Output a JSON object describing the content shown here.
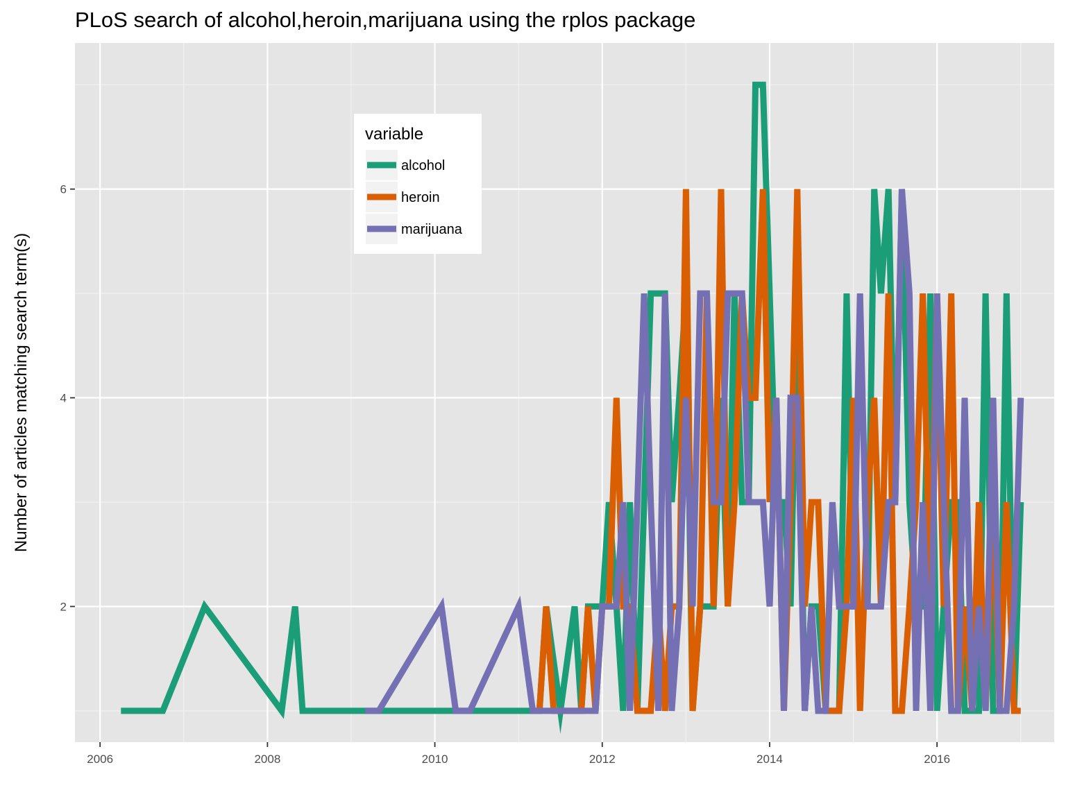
{
  "chart_data": {
    "type": "line",
    "title": "PLoS search of alcohol,heroin,marijuana using the rplos package",
    "xlabel": "",
    "ylabel": "Number of articles matching search term(s)",
    "xlim": [
      2005.7,
      2017.4
    ],
    "ylim": [
      0.7,
      7.4
    ],
    "x_ticks": [
      2006,
      2008,
      2010,
      2012,
      2014,
      2016
    ],
    "x_tick_labels": [
      "2006",
      "2008",
      "2010",
      "2012",
      "2014",
      "2016"
    ],
    "y_ticks": [
      2,
      4,
      6
    ],
    "y_tick_labels": [
      "2",
      "4",
      "6"
    ],
    "grid": true,
    "legend": {
      "title": "variable",
      "placement": "top-left inside"
    },
    "series": [
      {
        "name": "alcohol",
        "color": "#1b9e77",
        "x": [
          2006.25,
          2006.75,
          2007.25,
          2008.17,
          2008.33,
          2008.42,
          2009.25,
          2010.0,
          2011.25,
          2011.33,
          2011.5,
          2011.67,
          2011.75,
          2011.83,
          2011.92,
          2012.0,
          2012.08,
          2012.17,
          2012.25,
          2012.33,
          2012.42,
          2012.5,
          2012.58,
          2012.67,
          2012.75,
          2012.83,
          2012.92,
          2013.0,
          2013.08,
          2013.17,
          2013.25,
          2013.33,
          2013.42,
          2013.5,
          2013.58,
          2013.67,
          2013.75,
          2013.83,
          2013.92,
          2014.0,
          2014.08,
          2014.17,
          2014.25,
          2014.33,
          2014.42,
          2014.5,
          2014.58,
          2014.67,
          2014.75,
          2014.83,
          2014.92,
          2015.0,
          2015.08,
          2015.17,
          2015.25,
          2015.33,
          2015.42,
          2015.5,
          2015.58,
          2015.67,
          2015.75,
          2015.83,
          2015.92,
          2016.0,
          2016.08,
          2016.17,
          2016.25,
          2016.33,
          2016.42,
          2016.5,
          2016.58,
          2016.67,
          2016.75,
          2016.83,
          2016.92,
          2017.0
        ],
        "y": [
          1,
          1,
          2,
          1,
          2,
          1,
          1,
          1,
          1,
          2,
          1,
          2,
          1,
          2,
          2,
          2,
          3,
          2,
          1,
          3,
          1,
          3,
          5,
          5,
          5,
          3,
          4,
          5,
          1,
          2,
          2,
          2,
          4,
          2,
          5,
          3,
          3,
          7,
          7,
          5,
          3,
          3,
          2,
          5,
          1,
          2,
          2,
          1,
          1,
          1,
          5,
          2,
          2,
          2,
          6,
          5,
          6,
          3,
          6,
          3,
          2,
          2,
          5,
          1,
          2,
          3,
          3,
          1,
          1,
          1,
          5,
          1,
          1,
          5,
          1,
          3
        ]
      },
      {
        "name": "heroin",
        "color": "#d95f02",
        "x": [
          2011.25,
          2011.33,
          2011.42,
          2011.5,
          2011.58,
          2011.67,
          2011.75,
          2011.83,
          2011.92,
          2012.0,
          2012.08,
          2012.17,
          2012.25,
          2012.33,
          2012.42,
          2012.5,
          2012.58,
          2012.67,
          2012.75,
          2012.83,
          2012.92,
          2013.0,
          2013.08,
          2013.17,
          2013.25,
          2013.33,
          2013.42,
          2013.5,
          2013.58,
          2013.67,
          2013.75,
          2013.83,
          2013.92,
          2014.0,
          2014.08,
          2014.17,
          2014.25,
          2014.33,
          2014.42,
          2014.5,
          2014.58,
          2014.67,
          2014.75,
          2014.83,
          2014.92,
          2015.0,
          2015.08,
          2015.17,
          2015.25,
          2015.33,
          2015.42,
          2015.5,
          2015.58,
          2015.67,
          2015.75,
          2015.83,
          2015.92,
          2016.0,
          2016.08,
          2016.17,
          2016.25,
          2016.33,
          2016.42,
          2016.5,
          2016.58,
          2016.67,
          2016.75,
          2016.83,
          2016.92,
          2017.0
        ],
        "y": [
          1,
          2,
          1,
          1,
          1,
          1,
          1,
          2,
          1,
          2,
          2,
          4,
          2,
          2,
          1,
          1,
          1,
          2,
          1,
          2,
          2,
          6,
          1,
          2,
          5,
          2,
          6,
          2,
          3,
          5,
          4,
          4,
          6,
          3,
          4,
          1,
          3,
          6,
          2,
          3,
          3,
          1,
          1,
          1,
          2,
          4,
          1,
          3,
          4,
          2,
          5,
          1,
          1,
          2,
          3,
          5,
          2,
          5,
          2,
          5,
          1,
          2,
          1,
          3,
          1,
          3,
          1,
          3,
          1,
          1
        ]
      },
      {
        "name": "marijuana",
        "color": "#7570b3",
        "x": [
          2009.17,
          2009.33,
          2010.08,
          2010.25,
          2010.42,
          2011.0,
          2011.17,
          2011.25,
          2011.33,
          2011.5,
          2011.58,
          2011.67,
          2011.75,
          2011.83,
          2011.92,
          2012.0,
          2012.08,
          2012.17,
          2012.25,
          2012.33,
          2012.42,
          2012.5,
          2012.58,
          2012.67,
          2012.75,
          2012.83,
          2012.92,
          2013.0,
          2013.08,
          2013.17,
          2013.25,
          2013.33,
          2013.42,
          2013.5,
          2013.58,
          2013.67,
          2013.75,
          2013.83,
          2013.92,
          2014.0,
          2014.08,
          2014.17,
          2014.25,
          2014.33,
          2014.42,
          2014.5,
          2014.58,
          2014.67,
          2014.75,
          2014.83,
          2014.92,
          2015.0,
          2015.08,
          2015.17,
          2015.25,
          2015.33,
          2015.42,
          2015.5,
          2015.58,
          2015.67,
          2015.75,
          2015.83,
          2015.92,
          2016.0,
          2016.08,
          2016.17,
          2016.25,
          2016.33,
          2016.42,
          2016.5,
          2016.58,
          2016.67,
          2016.75,
          2016.83,
          2016.92,
          2017.0
        ],
        "y": [
          1,
          1,
          2,
          1,
          1,
          2,
          1,
          1,
          1,
          1,
          1,
          1,
          1,
          1,
          1,
          2,
          2,
          2,
          3,
          1,
          3,
          5,
          3,
          1,
          5,
          1,
          2,
          4,
          2,
          5,
          5,
          3,
          3,
          5,
          5,
          5,
          3,
          3,
          3,
          2,
          4,
          1,
          4,
          4,
          1,
          2,
          1,
          1,
          3,
          2,
          2,
          2,
          5,
          2,
          2,
          2,
          3,
          3,
          6,
          5,
          1,
          3,
          1,
          5,
          3,
          1,
          1,
          4,
          1,
          2,
          1,
          4,
          1,
          1,
          2,
          4
        ]
      }
    ]
  }
}
